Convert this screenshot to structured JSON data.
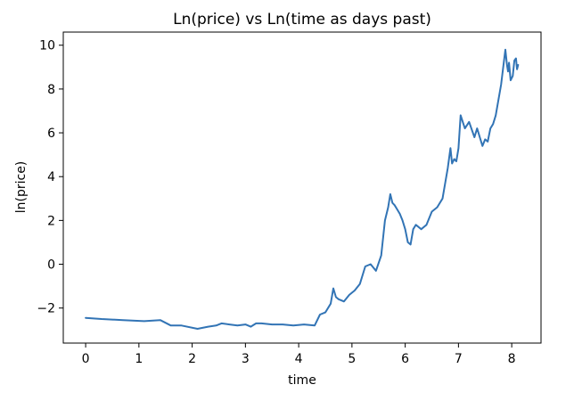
{
  "chart_data": {
    "type": "line",
    "title": "Ln(price) vs Ln(time as days past)",
    "xlabel": "time",
    "ylabel": "ln(price)",
    "xlim": [
      -0.42,
      8.55
    ],
    "ylim": [
      -3.6,
      10.6
    ],
    "xticks": [
      0,
      1,
      2,
      3,
      4,
      5,
      6,
      7,
      8
    ],
    "xtick_labels": [
      "0",
      "1",
      "2",
      "3",
      "4",
      "5",
      "6",
      "7",
      "8"
    ],
    "yticks": [
      -2,
      0,
      2,
      4,
      6,
      8,
      10
    ],
    "ytick_labels": [
      "−2",
      "0",
      "2",
      "4",
      "6",
      "8",
      "10"
    ],
    "grid": false,
    "legend": "none",
    "series": [
      {
        "color": "#3274b5",
        "x": [
          0.0,
          0.3,
          0.7,
          1.1,
          1.4,
          1.6,
          1.8,
          2.1,
          2.3,
          2.45,
          2.55,
          2.7,
          2.85,
          3.0,
          3.1,
          3.2,
          3.3,
          3.5,
          3.7,
          3.9,
          4.1,
          4.3,
          4.4,
          4.5,
          4.6,
          4.65,
          4.7,
          4.75,
          4.85,
          4.95,
          5.05,
          5.15,
          5.25,
          5.35,
          5.45,
          5.55,
          5.62,
          5.68,
          5.72,
          5.76,
          5.8,
          5.85,
          5.9,
          5.95,
          6.0,
          6.05,
          6.1,
          6.15,
          6.2,
          6.3,
          6.4,
          6.5,
          6.6,
          6.7,
          6.8,
          6.85,
          6.88,
          6.92,
          6.96,
          7.0,
          7.04,
          7.08,
          7.12,
          7.2,
          7.3,
          7.35,
          7.4,
          7.45,
          7.5,
          7.55,
          7.6,
          7.65,
          7.7,
          7.75,
          7.8,
          7.85,
          7.88,
          7.91,
          7.93,
          7.95,
          7.98,
          8.02,
          8.05,
          8.08,
          8.1,
          8.12
        ],
        "y": [
          -2.45,
          -2.5,
          -2.55,
          -2.6,
          -2.55,
          -2.8,
          -2.8,
          -2.95,
          -2.85,
          -2.8,
          -2.7,
          -2.75,
          -2.8,
          -2.75,
          -2.85,
          -2.7,
          -2.7,
          -2.75,
          -2.75,
          -2.8,
          -2.75,
          -2.8,
          -2.3,
          -2.2,
          -1.8,
          -1.1,
          -1.5,
          -1.6,
          -1.7,
          -1.4,
          -1.2,
          -0.9,
          -0.1,
          0.0,
          -0.3,
          0.4,
          2.0,
          2.6,
          3.2,
          2.8,
          2.7,
          2.5,
          2.3,
          2.0,
          1.6,
          1.0,
          0.9,
          1.6,
          1.8,
          1.6,
          1.8,
          2.4,
          2.6,
          3.0,
          4.4,
          5.3,
          4.6,
          4.8,
          4.7,
          5.3,
          6.8,
          6.5,
          6.2,
          6.5,
          5.8,
          6.2,
          5.8,
          5.4,
          5.7,
          5.6,
          6.2,
          6.4,
          6.8,
          7.5,
          8.2,
          9.2,
          9.8,
          9.1,
          8.8,
          9.2,
          8.4,
          8.6,
          9.3,
          9.4,
          8.9,
          9.1
        ]
      }
    ]
  }
}
